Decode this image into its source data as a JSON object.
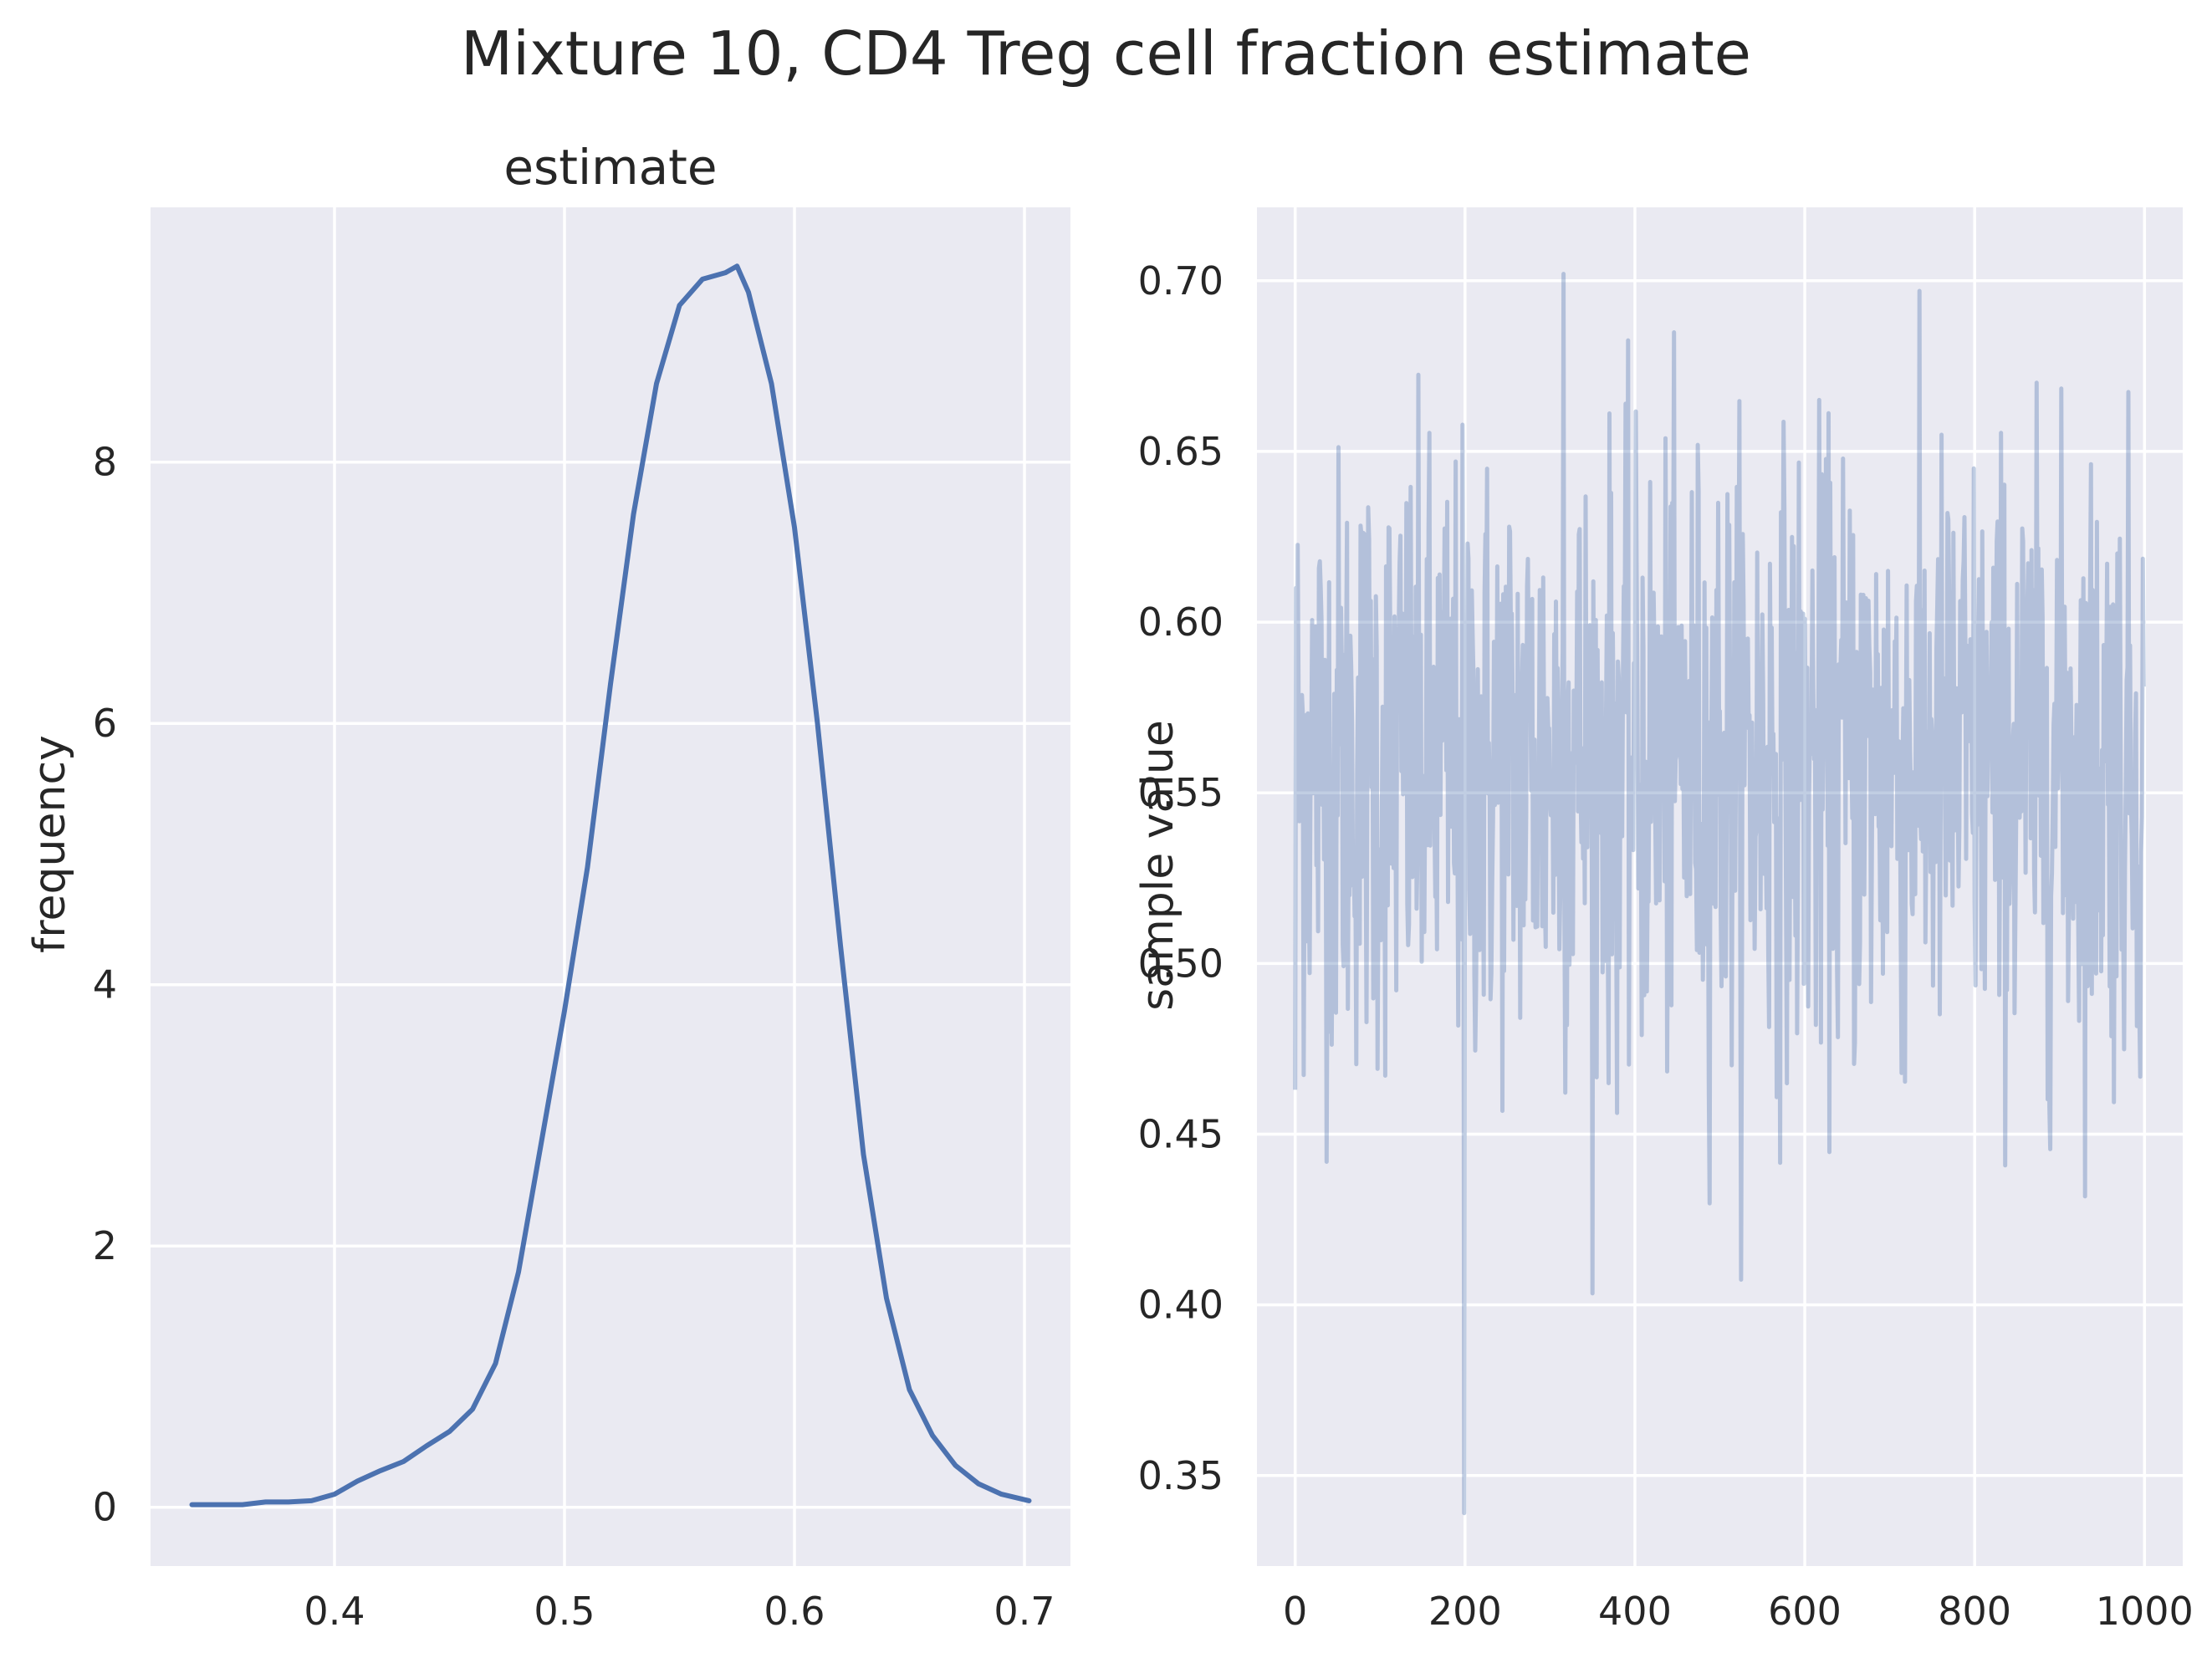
{
  "figure": {
    "title": "Mixture 10, CD4 Treg cell fraction estimate"
  },
  "chart_data": [
    {
      "type": "line",
      "panel": "left",
      "title": "estimate",
      "xlabel": "",
      "ylabel": "frequency",
      "xlim": [
        0.32,
        0.72
      ],
      "ylim": [
        -0.45,
        9.95
      ],
      "xticks": [
        0.4,
        0.5,
        0.6,
        0.7
      ],
      "xtick_labels": [
        "0.4",
        "0.5",
        "0.6",
        "0.7"
      ],
      "yticks": [
        0,
        2,
        4,
        6,
        8
      ],
      "ytick_labels": [
        "0",
        "2",
        "4",
        "6",
        "8"
      ],
      "grid": true,
      "color": "#4c72b0",
      "x": [
        0.338,
        0.35,
        0.36,
        0.37,
        0.38,
        0.39,
        0.4,
        0.41,
        0.42,
        0.43,
        0.44,
        0.45,
        0.46,
        0.47,
        0.48,
        0.49,
        0.5,
        0.51,
        0.52,
        0.53,
        0.54,
        0.55,
        0.56,
        0.57,
        0.575,
        0.58,
        0.59,
        0.6,
        0.61,
        0.62,
        0.63,
        0.64,
        0.65,
        0.66,
        0.67,
        0.68,
        0.69,
        0.702
      ],
      "y": [
        0.02,
        0.02,
        0.02,
        0.04,
        0.04,
        0.05,
        0.1,
        0.2,
        0.28,
        0.35,
        0.47,
        0.58,
        0.75,
        1.1,
        1.8,
        2.8,
        3.8,
        4.9,
        6.3,
        7.6,
        8.6,
        9.2,
        9.4,
        9.45,
        9.5,
        9.3,
        8.6,
        7.5,
        6.0,
        4.3,
        2.7,
        1.6,
        0.9,
        0.55,
        0.32,
        0.18,
        0.1,
        0.05
      ]
    },
    {
      "type": "line",
      "panel": "right",
      "title": "",
      "xlabel": "",
      "ylabel": "sample value",
      "xlim": [
        -45,
        1045
      ],
      "ylim": [
        0.3235,
        0.7215
      ],
      "xticks": [
        0,
        200,
        400,
        600,
        800,
        1000
      ],
      "xtick_labels": [
        "0",
        "200",
        "400",
        "600",
        "800",
        "1000"
      ],
      "yticks": [
        0.35,
        0.4,
        0.45,
        0.5,
        0.55,
        0.6,
        0.65,
        0.7
      ],
      "ytick_labels": [
        "0.35",
        "0.40",
        "0.45",
        "0.50",
        "0.55",
        "0.60",
        "0.65",
        "0.70"
      ],
      "grid": true,
      "color": "#4c72b0",
      "alpha": 0.35,
      "n_samples": 1000,
      "mean": 0.56,
      "sd": 0.045,
      "min": 0.339,
      "max": 0.702
    }
  ]
}
